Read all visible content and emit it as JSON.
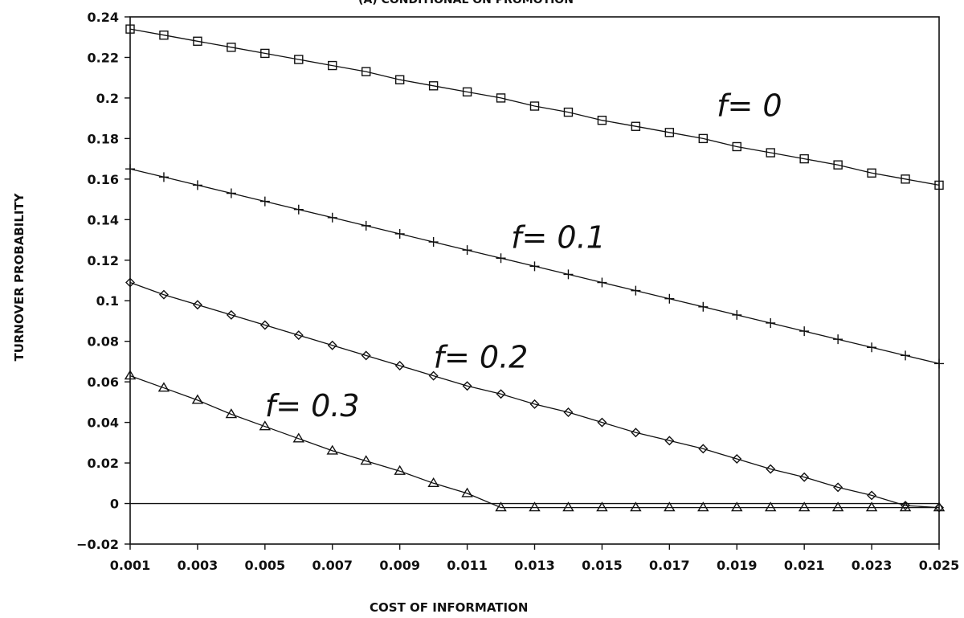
{
  "chart_data": {
    "type": "line",
    "title": "(A) CONDITIONAL ON PROMOTION",
    "xlabel": "COST OF INFORMATION",
    "ylabel": "TURNOVER PROBABILITY",
    "xlim": [
      0.001,
      0.025
    ],
    "ylim": [
      -0.02,
      0.24
    ],
    "grid": false,
    "x": [
      0.001,
      0.002,
      0.003,
      0.004,
      0.005,
      0.006,
      0.007,
      0.008,
      0.009,
      0.01,
      0.011,
      0.012,
      0.013,
      0.014,
      0.015,
      0.016,
      0.017,
      0.018,
      0.019,
      0.02,
      0.021,
      0.022,
      0.023,
      0.024,
      0.025
    ],
    "x_tick_labels": [
      "0.001",
      "0.003",
      "0.005",
      "0.007",
      "0.009",
      "0.011",
      "0.013",
      "0.015",
      "0.017",
      "0.019",
      "0.021",
      "0.023",
      "0.025"
    ],
    "x_ticks": [
      0.001,
      0.003,
      0.005,
      0.007,
      0.009,
      0.011,
      0.013,
      0.015,
      0.017,
      0.019,
      0.021,
      0.023,
      0.025
    ],
    "y_tick_labels": [
      "0.24",
      "0.22",
      "0.2",
      "0.18",
      "0.16",
      "0.14",
      "0.12",
      "0.1",
      "0.08",
      "0.06",
      "0.04",
      "0.02",
      "0",
      "−0.02"
    ],
    "y_ticks": [
      0.24,
      0.22,
      0.2,
      0.18,
      0.16,
      0.14,
      0.12,
      0.1,
      0.08,
      0.06,
      0.04,
      0.02,
      0,
      -0.02
    ],
    "series": [
      {
        "marker": "square",
        "values": [
          0.234,
          0.231,
          0.228,
          0.225,
          0.222,
          0.219,
          0.216,
          0.213,
          0.209,
          0.206,
          0.203,
          0.2,
          0.196,
          0.193,
          0.189,
          0.186,
          0.183,
          0.18,
          0.176,
          0.173,
          0.17,
          0.167,
          0.163,
          0.16,
          0.157
        ]
      },
      {
        "marker": "plus",
        "values": [
          0.165,
          0.161,
          0.157,
          0.153,
          0.149,
          0.145,
          0.141,
          0.137,
          0.133,
          0.129,
          0.125,
          0.121,
          0.117,
          0.113,
          0.109,
          0.105,
          0.101,
          0.097,
          0.093,
          0.089,
          0.085,
          0.081,
          0.077,
          0.073,
          0.069
        ]
      },
      {
        "marker": "diamond",
        "values": [
          0.109,
          0.103,
          0.098,
          0.093,
          0.088,
          0.083,
          0.078,
          0.073,
          0.068,
          0.063,
          0.058,
          0.054,
          0.049,
          0.045,
          0.04,
          0.035,
          0.031,
          0.027,
          0.022,
          0.017,
          0.013,
          0.008,
          0.004,
          -0.001,
          -0.002
        ]
      },
      {
        "marker": "triangle",
        "values": [
          0.063,
          0.057,
          0.051,
          0.044,
          0.038,
          0.032,
          0.026,
          0.021,
          0.016,
          0.01,
          0.005,
          -0.002,
          -0.002,
          -0.002,
          -0.002,
          -0.002,
          -0.002,
          -0.002,
          -0.002,
          -0.002,
          -0.002,
          -0.002,
          -0.002,
          -0.002,
          -0.002
        ]
      }
    ],
    "annotations": [
      {
        "text": "f= 0",
        "x": 0.0184,
        "y": 0.191
      },
      {
        "text": "f= 0.1",
        "x": 0.0123,
        "y": 0.126
      },
      {
        "text": "f= 0.2",
        "x": 0.01,
        "y": 0.067
      },
      {
        "text": "f= 0.3",
        "x": 0.005,
        "y": 0.043
      }
    ]
  }
}
